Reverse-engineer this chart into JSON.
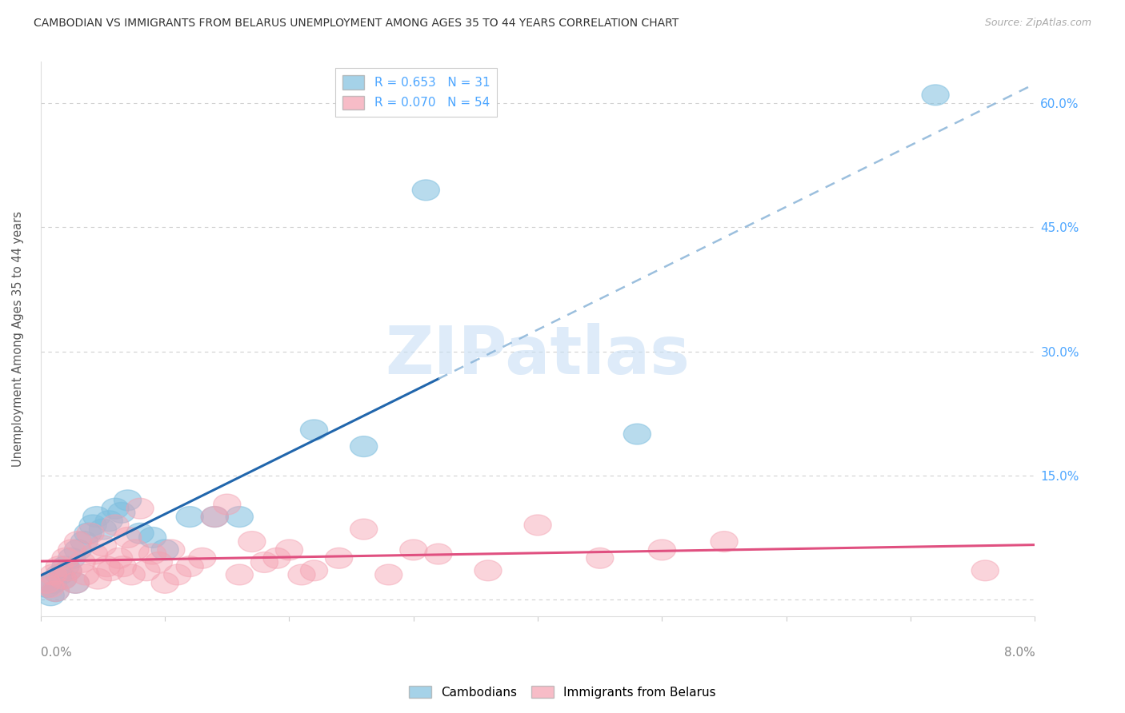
{
  "title": "CAMBODIAN VS IMMIGRANTS FROM BELARUS UNEMPLOYMENT AMONG AGES 35 TO 44 YEARS CORRELATION CHART",
  "source": "Source: ZipAtlas.com",
  "ylabel": "Unemployment Among Ages 35 to 44 years",
  "xlim": [
    0.0,
    8.0
  ],
  "ylim": [
    -2.0,
    65.0
  ],
  "yticks": [
    0.0,
    15.0,
    30.0,
    45.0,
    60.0
  ],
  "cambodian_color": "#7fbfdf",
  "belarus_color": "#f4a0b0",
  "cambodian_R": 0.653,
  "cambodian_N": 31,
  "belarus_R": 0.07,
  "belarus_N": 54,
  "regression_blue_color": "#2166ac",
  "regression_pink_color": "#e05080",
  "regression_blue_dashed_color": "#8ab4d8",
  "watermark_color": "#c8dff5",
  "cambodian_x": [
    0.05,
    0.08,
    0.1,
    0.12,
    0.15,
    0.18,
    0.2,
    0.22,
    0.25,
    0.28,
    0.3,
    0.35,
    0.38,
    0.42,
    0.45,
    0.5,
    0.55,
    0.6,
    0.65,
    0.7,
    0.8,
    0.9,
    1.0,
    1.2,
    1.4,
    1.6,
    2.2,
    2.6,
    3.1,
    4.8,
    7.2
  ],
  "cambodian_y": [
    1.5,
    0.5,
    2.0,
    1.0,
    3.0,
    2.5,
    4.0,
    3.5,
    5.0,
    2.0,
    6.0,
    7.0,
    8.0,
    9.0,
    10.0,
    8.5,
    9.5,
    11.0,
    10.5,
    12.0,
    8.0,
    7.5,
    6.0,
    10.0,
    10.0,
    10.0,
    20.5,
    18.5,
    49.5,
    20.0,
    61.0
  ],
  "belarus_x": [
    0.05,
    0.08,
    0.1,
    0.12,
    0.15,
    0.18,
    0.2,
    0.22,
    0.25,
    0.28,
    0.3,
    0.33,
    0.36,
    0.4,
    0.43,
    0.46,
    0.5,
    0.53,
    0.56,
    0.6,
    0.63,
    0.66,
    0.7,
    0.73,
    0.76,
    0.8,
    0.85,
    0.9,
    0.95,
    1.0,
    1.05,
    1.1,
    1.2,
    1.3,
    1.4,
    1.5,
    1.6,
    1.7,
    1.8,
    1.9,
    2.0,
    2.1,
    2.2,
    2.4,
    2.6,
    2.8,
    3.0,
    3.2,
    3.6,
    4.0,
    4.5,
    5.0,
    5.5,
    7.6
  ],
  "belarus_y": [
    2.0,
    1.5,
    3.0,
    1.0,
    4.0,
    2.5,
    5.0,
    3.5,
    6.0,
    2.0,
    7.0,
    4.5,
    3.0,
    8.0,
    5.5,
    2.5,
    6.5,
    4.0,
    3.5,
    9.0,
    5.0,
    4.0,
    7.5,
    3.0,
    6.0,
    11.0,
    3.5,
    5.5,
    4.5,
    2.0,
    6.0,
    3.0,
    4.0,
    5.0,
    10.0,
    11.5,
    3.0,
    7.0,
    4.5,
    5.0,
    6.0,
    3.0,
    3.5,
    5.0,
    8.5,
    3.0,
    6.0,
    5.5,
    3.5,
    9.0,
    5.0,
    6.0,
    7.0,
    3.5
  ]
}
